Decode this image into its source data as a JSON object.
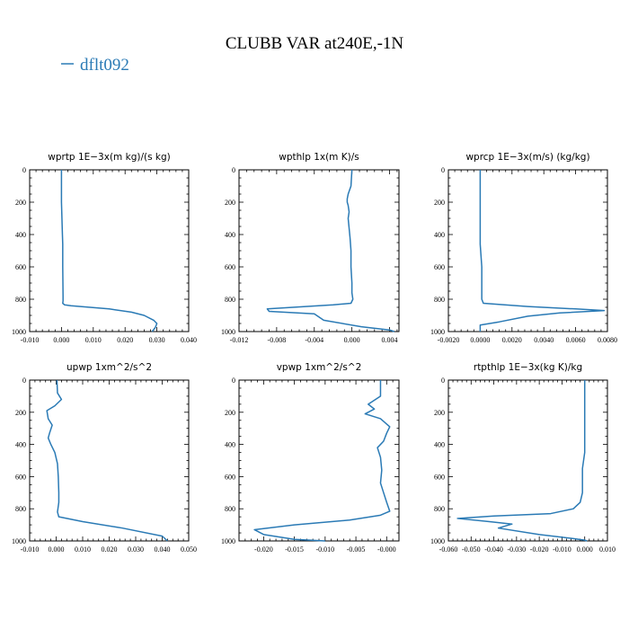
{
  "figure": {
    "title": "CLUBB VAR at240E,-1N",
    "legend": [
      {
        "label": "dflt092",
        "color": "#2a7ab5"
      }
    ],
    "line_color": "#2a7ab5"
  },
  "chart_data": [
    {
      "type": "line",
      "title": "wprtp   1E−3x(m kg)/(s kg)",
      "xlim": [
        -0.01,
        0.04
      ],
      "ylim": [
        1000,
        0
      ],
      "xticks": [
        -0.01,
        0.0,
        0.01,
        0.02,
        0.03,
        0.04
      ],
      "xticklabels": [
        "-0.010",
        "0.000",
        "0.010",
        "0.020",
        "0.030",
        "0.040"
      ],
      "yticks": [
        0,
        200,
        400,
        600,
        800,
        1000
      ],
      "yticklabels": [
        "0",
        "200",
        "400",
        "600",
        "800",
        "1000"
      ],
      "series": [
        {
          "name": "dflt092",
          "x": [
            0.0,
            0.0,
            0.0003,
            0.0004,
            0.0004,
            0.0005,
            0.0005,
            0.0004,
            0.001,
            0.003,
            0.015,
            0.022,
            0.026,
            0.029,
            0.03,
            0.0295,
            0.0285
          ],
          "y": [
            0,
            200,
            400,
            460,
            600,
            780,
            810,
            825,
            835,
            840,
            860,
            880,
            900,
            930,
            950,
            975,
            1000
          ]
        }
      ]
    },
    {
      "type": "line",
      "title": "wpthlp   1x(m K)/s",
      "xlim": [
        -0.012,
        0.005
      ],
      "ylim": [
        1000,
        0
      ],
      "xticks": [
        -0.012,
        -0.008,
        -0.004,
        0.0,
        0.004
      ],
      "xticklabels": [
        "-0.012",
        "-0.008",
        "-0.004",
        "0.000",
        "0.004"
      ],
      "yticks": [
        0,
        200,
        400,
        600,
        800,
        1000
      ],
      "yticklabels": [
        "0",
        "200",
        "400",
        "600",
        "800",
        "1000"
      ],
      "series": [
        {
          "name": "dflt092",
          "x": [
            0.0,
            -0.0001,
            -0.0004,
            -0.0005,
            -0.0005,
            -0.0004,
            -0.0003,
            -0.0004,
            -0.0003,
            -0.0002,
            -0.0001,
            -0.0001,
            0.0,
            0.0,
            0.0001,
            -0.0001,
            -0.002,
            -0.009,
            -0.0088,
            -0.004,
            -0.003,
            0.001,
            0.004,
            0.0045
          ],
          "y": [
            0,
            100,
            150,
            180,
            200,
            220,
            260,
            300,
            360,
            420,
            500,
            600,
            700,
            760,
            800,
            825,
            835,
            860,
            875,
            890,
            930,
            970,
            990,
            1000
          ]
        }
      ]
    },
    {
      "type": "line",
      "title": "wprcp   1E−3x(m/s) (kg/kg)",
      "xlim": [
        -0.002,
        0.008
      ],
      "ylim": [
        1000,
        0
      ],
      "xticks": [
        -0.002,
        0.0,
        0.002,
        0.004,
        0.006,
        0.008
      ],
      "xticklabels": [
        "-0.0020",
        "0.0000",
        "0.0020",
        "0.0040",
        "0.0060",
        "0.0080"
      ],
      "yticks": [
        0,
        200,
        400,
        600,
        800,
        1000
      ],
      "yticklabels": [
        "0",
        "200",
        "400",
        "600",
        "800",
        "1000"
      ],
      "series": [
        {
          "name": "dflt092",
          "x": [
            0.0,
            0.0,
            0.0,
            0.0001,
            0.0001,
            0.0002,
            0.003,
            0.006,
            0.0078,
            0.005,
            0.003,
            0.0012,
            0.0,
            0.0
          ],
          "y": [
            0,
            400,
            460,
            600,
            800,
            825,
            845,
            860,
            870,
            885,
            905,
            940,
            960,
            1000
          ]
        }
      ]
    },
    {
      "type": "line",
      "title": "upwp   1xm^2/s^2",
      "xlim": [
        -0.01,
        0.05
      ],
      "ylim": [
        1000,
        0
      ],
      "xticks": [
        -0.01,
        0.0,
        0.01,
        0.02,
        0.03,
        0.04,
        0.05
      ],
      "xticklabels": [
        "-0.010",
        "0.000",
        "0.010",
        "0.020",
        "0.030",
        "0.040",
        "0.050"
      ],
      "yticks": [
        0,
        200,
        400,
        600,
        800,
        1000
      ],
      "yticklabels": [
        "0",
        "200",
        "400",
        "600",
        "800",
        "1000"
      ],
      "series": [
        {
          "name": "dflt092",
          "x": [
            0.0003,
            0.0005,
            0.002,
            -0.0005,
            -0.0035,
            -0.003,
            -0.0015,
            -0.0025,
            -0.003,
            -0.002,
            -0.0005,
            0.0005,
            0.0008,
            0.001,
            0.001,
            0.0005,
            0.001,
            0.01,
            0.025,
            0.04,
            0.042
          ],
          "y": [
            0,
            80,
            120,
            160,
            190,
            240,
            280,
            330,
            360,
            400,
            450,
            520,
            600,
            700,
            760,
            820,
            850,
            880,
            920,
            970,
            1000
          ]
        }
      ]
    },
    {
      "type": "line",
      "title": "vpwp   1xm^2/s^2",
      "xlim": [
        -0.024,
        0.002
      ],
      "ylim": [
        1000,
        0
      ],
      "xticks": [
        -0.02,
        -0.015,
        -0.01,
        -0.005,
        0.0
      ],
      "xticklabels": [
        "-0.020",
        "-0.015",
        "-0.010",
        "-0.005",
        "-0.000"
      ],
      "yticks": [
        0,
        200,
        400,
        600,
        800,
        1000
      ],
      "yticklabels": [
        "0",
        "200",
        "400",
        "600",
        "800",
        "1000"
      ],
      "series": [
        {
          "name": "dflt092",
          "x": [
            -0.001,
            -0.001,
            -0.003,
            -0.002,
            -0.0035,
            -0.001,
            0.0005,
            0.0,
            -0.0005,
            -0.0015,
            -0.001,
            -0.0008,
            -0.001,
            -0.0005,
            0.0,
            0.0005,
            -0.001,
            -0.006,
            -0.015,
            -0.0215,
            -0.02,
            -0.015,
            -0.01
          ],
          "y": [
            0,
            100,
            150,
            180,
            210,
            240,
            290,
            330,
            380,
            420,
            480,
            560,
            640,
            700,
            760,
            815,
            840,
            870,
            900,
            930,
            960,
            990,
            1000
          ]
        }
      ]
    },
    {
      "type": "line",
      "title": "rtpthlp   1E−3x(kg K)/kg",
      "xlim": [
        -0.06,
        0.01
      ],
      "ylim": [
        1000,
        0
      ],
      "xticks": [
        -0.06,
        -0.05,
        -0.04,
        -0.03,
        -0.02,
        -0.01,
        0.0,
        0.01
      ],
      "xticklabels": [
        "-0.060",
        "-0.050",
        "-0.040",
        "-0.030",
        "-0.020",
        "-0.010",
        "0.000",
        "0.010"
      ],
      "yticks": [
        0,
        200,
        400,
        600,
        800,
        1000
      ],
      "yticklabels": [
        "0",
        "200",
        "400",
        "600",
        "800",
        "1000"
      ],
      "series": [
        {
          "name": "dflt092",
          "x": [
            0.0,
            0.0,
            0.0,
            -0.001,
            -0.001,
            -0.002,
            -0.005,
            -0.015,
            -0.04,
            -0.056,
            -0.042,
            -0.032,
            -0.038,
            -0.02,
            -0.005,
            0.0,
            0.001
          ],
          "y": [
            0,
            400,
            450,
            550,
            700,
            760,
            800,
            830,
            845,
            860,
            880,
            895,
            920,
            960,
            985,
            995,
            1000
          ]
        }
      ]
    }
  ]
}
